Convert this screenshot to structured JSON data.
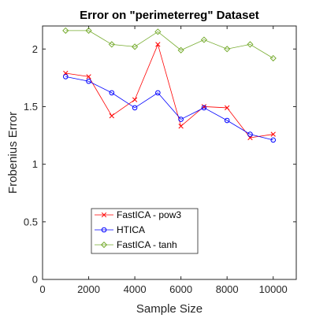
{
  "chart_data": {
    "type": "line",
    "title": "Error on \"perimeterreg\" Dataset",
    "xlabel": "Sample Size",
    "ylabel": "Frobenius Error",
    "xlim": [
      0,
      11000
    ],
    "ylim": [
      0,
      2.2
    ],
    "xticks": [
      "0",
      "2000",
      "4000",
      "6000",
      "8000",
      "10000"
    ],
    "yticks": [
      "0",
      "0.5",
      "1",
      "1.5",
      "2"
    ],
    "x": [
      1000,
      2000,
      3000,
      4000,
      5000,
      6000,
      7000,
      8000,
      9000,
      10000
    ],
    "series": [
      {
        "name": "FastICA - pow3",
        "color": "#ff0000",
        "marker": "x",
        "values": [
          1.79,
          1.76,
          1.42,
          1.56,
          2.04,
          1.33,
          1.5,
          1.49,
          1.23,
          1.26
        ]
      },
      {
        "name": "HTICA",
        "color": "#0000ff",
        "marker": "circle",
        "values": [
          1.76,
          1.72,
          1.62,
          1.49,
          1.62,
          1.39,
          1.49,
          1.38,
          1.26,
          1.21
        ]
      },
      {
        "name": "FastICA - tanh",
        "color": "#77ac30",
        "marker": "diamond",
        "values": [
          2.16,
          2.16,
          2.04,
          2.02,
          2.15,
          1.99,
          2.08,
          2.0,
          2.04,
          1.92
        ]
      }
    ],
    "grid": false,
    "legend_position": "bottom-left"
  }
}
